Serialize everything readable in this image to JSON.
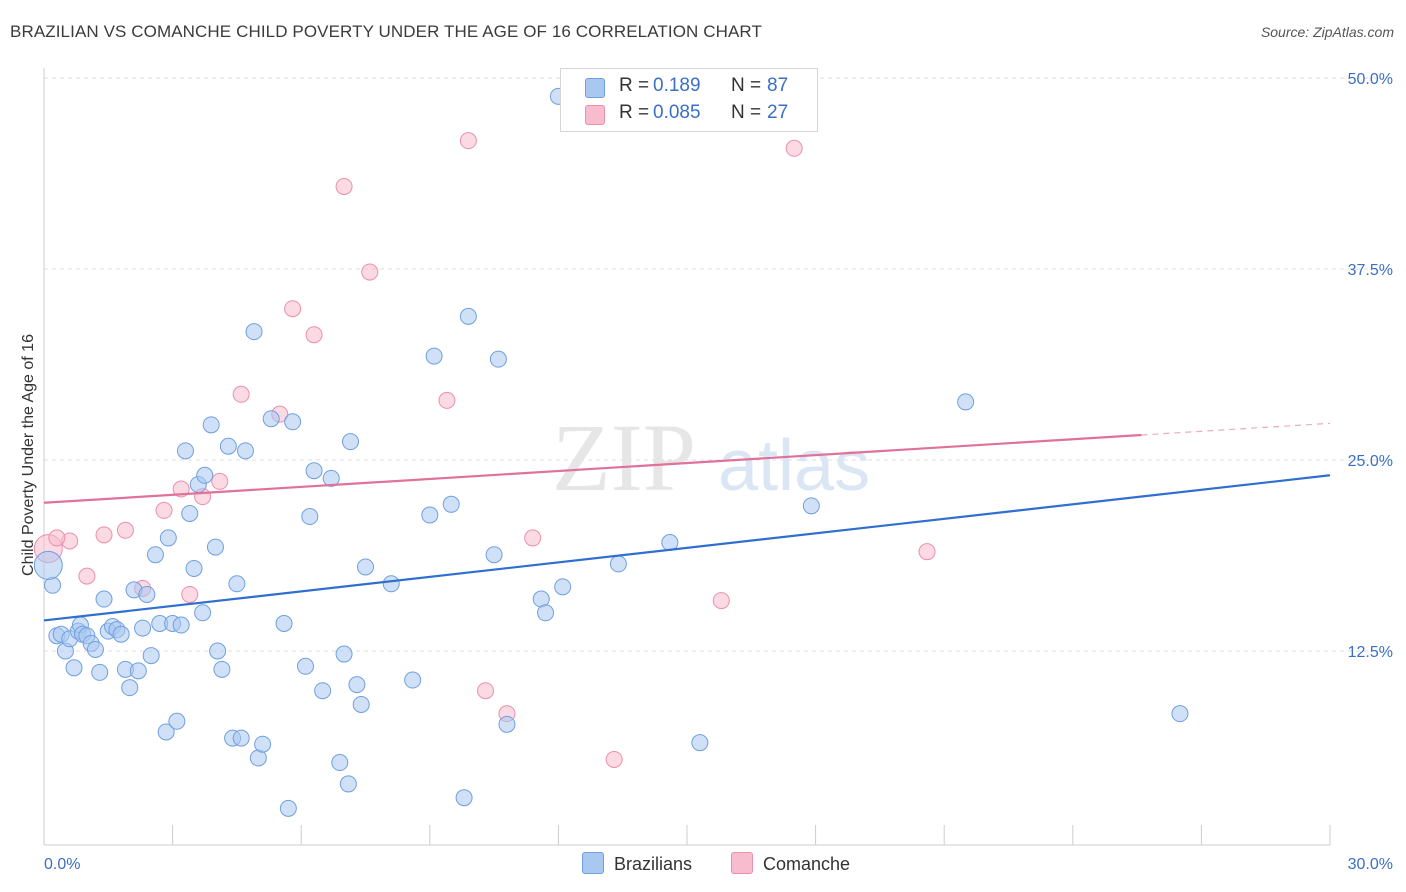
{
  "header": {
    "title": "BRAZILIAN VS COMANCHE CHILD POVERTY UNDER THE AGE OF 16 CORRELATION CHART",
    "source": "Source: ZipAtlas.com"
  },
  "watermark": {
    "zip": "ZIP",
    "atlas": "atlas"
  },
  "legend": {
    "rows": [
      {
        "r_label": "R =",
        "r_value": "0.189",
        "n_label": "N =",
        "n_value": "87"
      },
      {
        "r_label": "R =",
        "r_value": "0.085",
        "n_label": "N =",
        "n_value": "27"
      }
    ]
  },
  "bottom_legend": {
    "items": [
      "Brazilians",
      "Comanche"
    ]
  },
  "colors": {
    "brazilians_fill": "#a9c8f0",
    "brazilians_stroke": "#6f9fe0",
    "brazilians_line": "#2e6fcf",
    "comanche_fill": "#f7bccd",
    "comanche_stroke": "#ec8fab",
    "comanche_line": "#e0719a",
    "grid": "#dddddd",
    "tick_text": "#3b6fc4"
  },
  "chart_data": {
    "type": "scatter",
    "title": "BRAZILIAN VS COMANCHE CHILD POVERTY UNDER THE AGE OF 16 CORRELATION CHART",
    "xlabel": "",
    "ylabel": "Child Poverty Under the Age of 16",
    "xlim": [
      0,
      30
    ],
    "ylim": [
      0,
      50
    ],
    "x_tick_labels": [
      "0.0%",
      "30.0%"
    ],
    "y_ticks": [
      12.5,
      25.0,
      37.5,
      50.0
    ],
    "y_tick_labels": [
      "12.5%",
      "25.0%",
      "37.5%",
      "50.0%"
    ],
    "grid": "horizontal dashed",
    "legend_position": "top-center",
    "series": [
      {
        "name": "Brazilians",
        "R": 0.189,
        "N": 87,
        "trend": {
          "x": [
            0,
            30
          ],
          "y": [
            14.5,
            24.0
          ],
          "dashed_from_x": null
        },
        "points": [
          [
            0.2,
            16.8
          ],
          [
            0.3,
            13.5
          ],
          [
            0.4,
            13.6
          ],
          [
            0.5,
            12.5
          ],
          [
            0.6,
            13.3
          ],
          [
            0.7,
            11.4
          ],
          [
            0.8,
            13.8
          ],
          [
            0.85,
            14.2
          ],
          [
            0.9,
            13.6
          ],
          [
            1.0,
            13.5
          ],
          [
            1.1,
            13.0
          ],
          [
            1.2,
            12.6
          ],
          [
            1.3,
            11.1
          ],
          [
            1.4,
            15.9
          ],
          [
            1.5,
            13.8
          ],
          [
            1.6,
            14.1
          ],
          [
            1.7,
            13.9
          ],
          [
            1.8,
            13.6
          ],
          [
            1.9,
            11.3
          ],
          [
            2.0,
            10.1
          ],
          [
            2.1,
            16.5
          ],
          [
            2.2,
            11.2
          ],
          [
            2.3,
            14.0
          ],
          [
            2.4,
            16.2
          ],
          [
            2.5,
            12.2
          ],
          [
            2.6,
            18.8
          ],
          [
            2.7,
            14.3
          ],
          [
            2.85,
            7.2
          ],
          [
            2.9,
            19.9
          ],
          [
            3.0,
            14.3
          ],
          [
            3.1,
            7.9
          ],
          [
            3.2,
            14.2
          ],
          [
            3.3,
            25.6
          ],
          [
            3.4,
            21.5
          ],
          [
            3.5,
            17.9
          ],
          [
            3.6,
            23.4
          ],
          [
            3.7,
            15.0
          ],
          [
            3.75,
            24.0
          ],
          [
            3.9,
            27.3
          ],
          [
            4.0,
            19.3
          ],
          [
            4.05,
            12.5
          ],
          [
            4.15,
            11.3
          ],
          [
            4.3,
            25.9
          ],
          [
            4.4,
            6.8
          ],
          [
            4.5,
            16.9
          ],
          [
            4.6,
            6.8
          ],
          [
            4.7,
            25.6
          ],
          [
            4.9,
            33.4
          ],
          [
            5.0,
            5.5
          ],
          [
            5.1,
            6.4
          ],
          [
            5.3,
            27.7
          ],
          [
            5.8,
            27.5
          ],
          [
            5.7,
            2.2
          ],
          [
            5.6,
            14.3
          ],
          [
            6.2,
            21.3
          ],
          [
            6.3,
            24.3
          ],
          [
            6.1,
            11.5
          ],
          [
            6.5,
            9.9
          ],
          [
            6.7,
            23.8
          ],
          [
            6.9,
            5.2
          ],
          [
            7.0,
            12.3
          ],
          [
            7.1,
            3.8
          ],
          [
            7.15,
            26.2
          ],
          [
            7.3,
            10.3
          ],
          [
            7.4,
            9.0
          ],
          [
            7.5,
            18.0
          ],
          [
            8.1,
            16.9
          ],
          [
            8.6,
            10.6
          ],
          [
            9.0,
            21.4
          ],
          [
            9.1,
            31.8
          ],
          [
            9.5,
            22.1
          ],
          [
            9.8,
            2.9
          ],
          [
            9.9,
            34.4
          ],
          [
            10.5,
            18.8
          ],
          [
            10.6,
            31.6
          ],
          [
            10.8,
            7.7
          ],
          [
            11.6,
            15.9
          ],
          [
            11.7,
            15.0
          ],
          [
            12.0,
            48.8
          ],
          [
            12.1,
            16.7
          ],
          [
            13.4,
            18.2
          ],
          [
            14.6,
            19.6
          ],
          [
            15.3,
            6.5
          ],
          [
            17.9,
            22.0
          ],
          [
            21.5,
            28.8
          ],
          [
            26.5,
            8.4
          ],
          [
            0.1,
            18.1
          ]
        ]
      },
      {
        "name": "Comanche",
        "R": 0.085,
        "N": 27,
        "trend": {
          "x": [
            0,
            30
          ],
          "y": [
            22.2,
            27.4
          ],
          "dashed_from_x": 25.6
        },
        "points": [
          [
            0.1,
            19.2
          ],
          [
            0.6,
            19.7
          ],
          [
            1.0,
            17.4
          ],
          [
            1.4,
            20.1
          ],
          [
            1.9,
            20.4
          ],
          [
            2.3,
            16.6
          ],
          [
            2.8,
            21.7
          ],
          [
            3.2,
            23.1
          ],
          [
            3.4,
            16.2
          ],
          [
            3.7,
            22.6
          ],
          [
            4.1,
            23.6
          ],
          [
            4.6,
            29.3
          ],
          [
            5.5,
            28.0
          ],
          [
            5.8,
            34.9
          ],
          [
            6.3,
            33.2
          ],
          [
            7.0,
            42.9
          ],
          [
            7.6,
            37.3
          ],
          [
            9.4,
            28.9
          ],
          [
            9.9,
            45.9
          ],
          [
            10.3,
            9.9
          ],
          [
            10.8,
            8.4
          ],
          [
            11.4,
            19.9
          ],
          [
            13.3,
            5.4
          ],
          [
            15.8,
            15.8
          ],
          [
            17.5,
            45.4
          ],
          [
            20.6,
            19.0
          ],
          [
            0.3,
            19.9
          ]
        ]
      }
    ]
  }
}
